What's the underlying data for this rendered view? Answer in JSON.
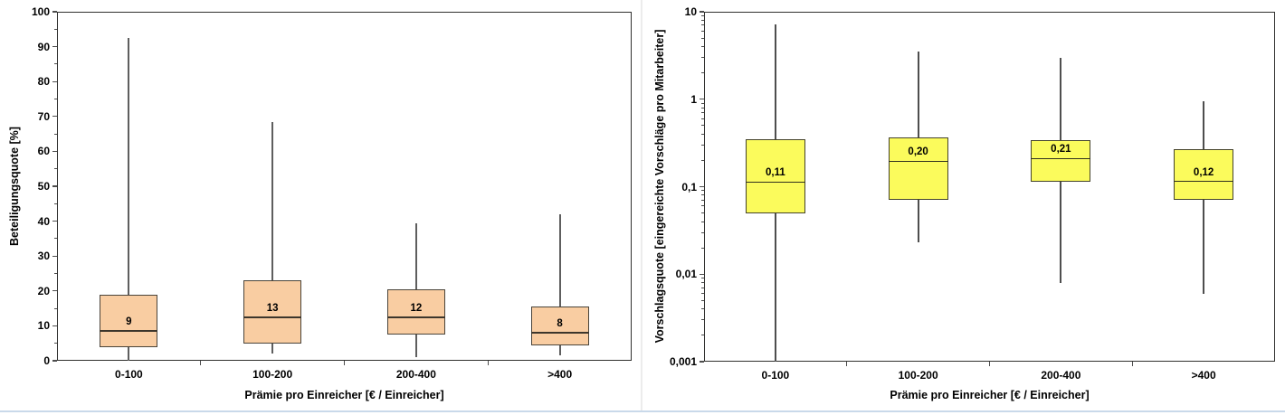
{
  "page": {
    "background": "#ffffff",
    "panel_divider_color": "#ececec",
    "bottom_border_color": "#c9d9ea"
  },
  "chart_data": [
    {
      "type": "box",
      "title": "",
      "ylabel": "Beteiligungsquote [%]",
      "xlabel": "Prämie pro Einreicher [€ / Einreicher]",
      "y_scale": "linear",
      "ylim": [
        0,
        100
      ],
      "y_tick_values": [
        0,
        10,
        20,
        30,
        40,
        50,
        60,
        70,
        80,
        90,
        100
      ],
      "y_tick_labels": [
        "0",
        "10",
        "20",
        "30",
        "40",
        "50",
        "60",
        "70",
        "80",
        "90",
        "100"
      ],
      "y_minor_step": 5,
      "grid": false,
      "legend": null,
      "categories": [
        "0-100",
        "100-200",
        "200-400",
        ">400"
      ],
      "colors": {
        "box_fill": "#f9cda2",
        "box_border": "#4a443a",
        "median": "#3d362c",
        "whisker": "#5e5e5e",
        "axis": "#30302e",
        "tick": "#4d4d4d"
      },
      "boxes": [
        {
          "category": "0-100",
          "whisker_low": 0,
          "q1": 4,
          "median": 8.5,
          "q3": 19,
          "whisker_high": 92.5,
          "label": "9"
        },
        {
          "category": "100-200",
          "whisker_low": 2,
          "q1": 5,
          "median": 12.5,
          "q3": 23,
          "whisker_high": 68.5,
          "label": "13"
        },
        {
          "category": "200-400",
          "whisker_low": 1,
          "q1": 7.5,
          "median": 12.5,
          "q3": 20.5,
          "whisker_high": 39.5,
          "label": "12"
        },
        {
          "category": ">400",
          "whisker_low": 1.5,
          "q1": 4.5,
          "median": 8,
          "q3": 15.5,
          "whisker_high": 42,
          "label": "8"
        }
      ]
    },
    {
      "type": "box",
      "title": "",
      "ylabel": "Vorschlagsquote [eingereichte Vorschläge pro Mitarbeiter]",
      "xlabel": "Prämie pro Einreicher [€ / Einreicher]",
      "y_scale": "log",
      "ylim": [
        0.001,
        10
      ],
      "y_tick_values": [
        10,
        1,
        0.1,
        0.01,
        0.001
      ],
      "y_tick_labels": [
        "10",
        "1",
        "0,1",
        "0,01",
        "0,001"
      ],
      "y_minor_step": null,
      "grid": false,
      "legend": null,
      "categories": [
        "0-100",
        "100-200",
        "200-400",
        ">400"
      ],
      "colors": {
        "box_fill": "#fbfb5c",
        "box_border": "#45432a",
        "median": "#30301e",
        "whisker": "#4e4e4e",
        "axis": "#30302e",
        "tick": "#4d4d4d"
      },
      "boxes": [
        {
          "category": "0-100",
          "whisker_low": 0.001,
          "q1": 0.05,
          "median": 0.113,
          "q3": 0.35,
          "whisker_high": 7.2,
          "label": "0,11"
        },
        {
          "category": "100-200",
          "whisker_low": 0.023,
          "q1": 0.07,
          "median": 0.195,
          "q3": 0.37,
          "whisker_high": 3.5,
          "label": "0,20"
        },
        {
          "category": "200-400",
          "whisker_low": 0.008,
          "q1": 0.115,
          "median": 0.21,
          "q3": 0.34,
          "whisker_high": 3.0,
          "label": "0,21"
        },
        {
          "category": ">400",
          "whisker_low": 0.006,
          "q1": 0.07,
          "median": 0.115,
          "q3": 0.27,
          "whisker_high": 0.95,
          "label": "0,12"
        }
      ]
    }
  ]
}
